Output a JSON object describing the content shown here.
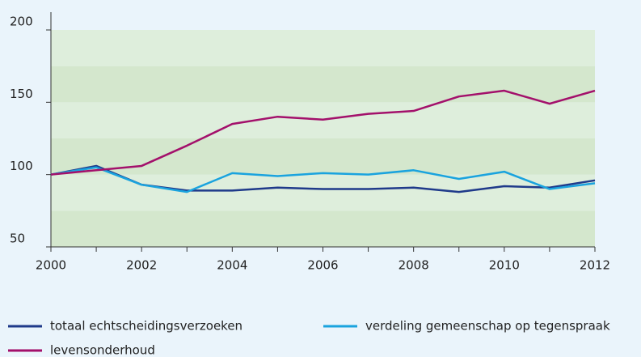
{
  "chart_data": {
    "type": "line",
    "x": [
      2000,
      2001,
      2002,
      2003,
      2004,
      2005,
      2006,
      2007,
      2008,
      2009,
      2010,
      2011,
      2012
    ],
    "series": [
      {
        "name": "totaal echtscheidingsverzoeken",
        "color": "#1f3a8a",
        "values": [
          100,
          106,
          93,
          89,
          89,
          91,
          90,
          90,
          91,
          88,
          92,
          91,
          96
        ]
      },
      {
        "name": "verdeling gemeenschap op tegenspraak",
        "color": "#1aa3de",
        "values": [
          100,
          105,
          93,
          88,
          101,
          99,
          101,
          100,
          103,
          97,
          102,
          90,
          94
        ]
      },
      {
        "name": "levensonderhoud",
        "color": "#a3106b",
        "values": [
          100,
          103,
          106,
          120,
          135,
          140,
          138,
          142,
          144,
          154,
          158,
          149,
          158
        ]
      }
    ],
    "xlim": [
      2000,
      2012
    ],
    "xticks": [
      2000,
      2002,
      2004,
      2006,
      2008,
      2010,
      2012
    ],
    "ylim": [
      50,
      200
    ],
    "yticks": [
      50,
      100,
      150,
      200
    ]
  }
}
